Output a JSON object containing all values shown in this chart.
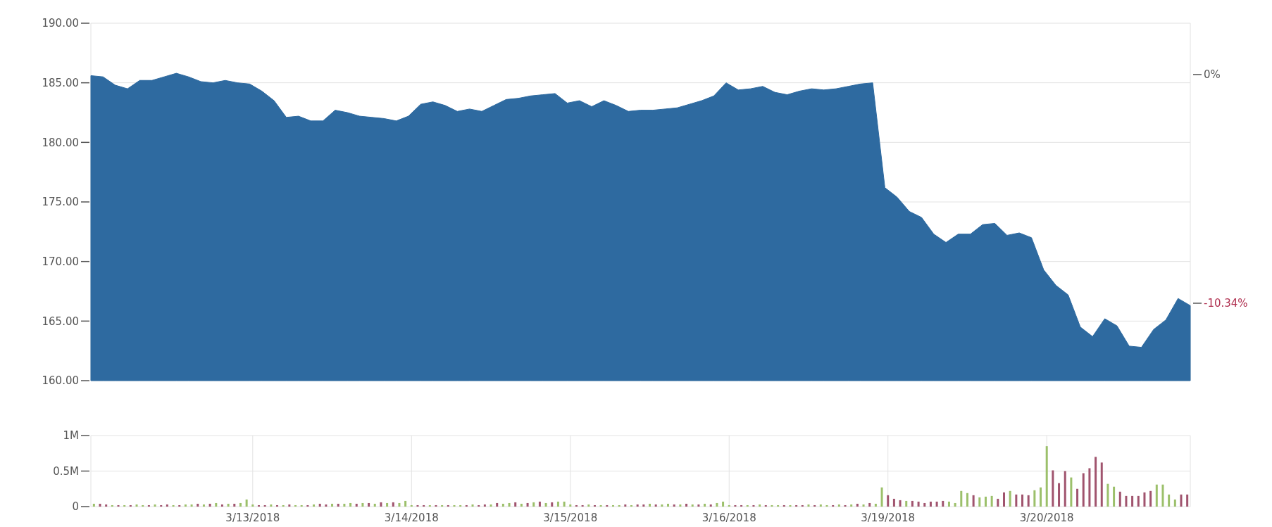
{
  "chart_data": [
    {
      "type": "area",
      "color": "#2e6aa0",
      "categories": [
        null,
        null,
        null,
        null,
        null,
        null,
        null,
        null,
        null,
        null,
        null,
        null,
        null,
        null,
        null,
        null,
        null,
        null,
        null,
        null,
        null,
        null,
        null,
        null,
        null,
        null,
        null,
        null,
        null,
        null,
        null,
        null,
        null,
        null,
        null,
        null,
        null,
        null,
        null,
        null,
        null,
        null,
        null,
        null,
        null,
        null,
        null,
        null,
        null,
        null,
        null,
        null,
        null,
        null,
        null,
        null,
        null,
        null,
        null,
        null,
        null,
        null,
        null,
        null,
        null,
        null,
        null,
        null,
        null,
        null,
        null,
        null,
        null,
        null,
        null,
        null,
        null,
        null,
        null,
        null,
        null,
        null,
        null,
        null,
        null,
        null,
        null,
        null,
        null,
        null,
        null
      ],
      "values": [
        185.6,
        185.5,
        184.8,
        184.5,
        185.2,
        185.2,
        185.5,
        185.8,
        185.5,
        185.1,
        185.0,
        185.2,
        185.0,
        184.9,
        184.3,
        183.5,
        182.1,
        182.2,
        181.8,
        181.8,
        182.7,
        182.5,
        182.2,
        182.1,
        182.0,
        181.8,
        182.2,
        183.2,
        183.4,
        183.1,
        182.6,
        182.8,
        182.6,
        183.1,
        183.6,
        183.7,
        183.9,
        184.0,
        184.1,
        183.3,
        183.5,
        183.0,
        183.5,
        183.1,
        182.6,
        182.7,
        182.7,
        182.8,
        182.9,
        183.2,
        183.5,
        183.9,
        185.0,
        184.4,
        184.5,
        184.7,
        184.2,
        184.0,
        184.3,
        184.5,
        184.4,
        184.5,
        184.7,
        184.9,
        185.0,
        176.2,
        175.4,
        174.2,
        173.7,
        172.3,
        171.6,
        172.3,
        172.3,
        173.1,
        173.2,
        172.2,
        172.4,
        172.0,
        169.3,
        168.0,
        167.2,
        164.5,
        163.7,
        165.2,
        164.6,
        162.9,
        162.8,
        164.3,
        165.1,
        166.9,
        166.3
      ],
      "ylim": [
        160,
        190
      ],
      "yticks": [
        {
          "value": 160,
          "label": "160.00"
        },
        {
          "value": 165,
          "label": "165.00"
        },
        {
          "value": 170,
          "label": "170.00"
        },
        {
          "value": 175,
          "label": "175.00"
        },
        {
          "value": 180,
          "label": "180.00"
        },
        {
          "value": 185,
          "label": "185.00"
        },
        {
          "value": 190,
          "label": "190.00"
        }
      ],
      "y2lim": [
        -13.84,
        2.32
      ],
      "y2ticks": [
        {
          "value": 0,
          "label": "0%"
        },
        {
          "value": -10.34,
          "label": "-10.34%"
        }
      ],
      "grid": "y"
    },
    {
      "type": "bar",
      "categories": [
        null,
        null,
        null,
        null,
        null,
        null,
        null,
        null,
        null,
        null,
        null,
        null,
        null,
        null,
        null,
        null,
        null,
        null,
        null,
        null,
        null,
        null,
        null,
        null,
        null,
        null,
        "3/13/2018",
        null,
        null,
        null,
        null,
        null,
        null,
        null,
        null,
        null,
        null,
        null,
        null,
        null,
        null,
        null,
        null,
        null,
        null,
        null,
        null,
        null,
        null,
        null,
        null,
        null,
        "3/14/2018",
        null,
        null,
        null,
        null,
        null,
        null,
        null,
        null,
        null,
        null,
        null,
        null,
        null,
        null,
        null,
        null,
        null,
        null,
        null,
        null,
        null,
        null,
        null,
        null,
        null,
        "3/15/2018",
        null,
        null,
        null,
        null,
        null,
        null,
        null,
        null,
        null,
        null,
        null,
        null,
        null,
        null,
        null,
        null,
        null,
        null,
        null,
        null,
        null,
        null,
        null,
        null,
        null,
        "3/16/2018",
        null,
        null,
        null,
        null,
        null,
        null,
        null,
        null,
        null,
        null,
        null,
        null,
        null,
        null,
        null,
        null,
        null,
        null,
        null,
        null,
        null,
        null,
        null,
        null,
        null,
        "3/19/2018",
        null,
        null,
        null,
        null,
        null,
        null,
        null,
        null,
        null,
        null,
        null,
        null,
        null,
        null,
        null,
        null,
        null,
        null,
        null,
        null,
        null,
        null,
        null,
        null,
        null,
        "3/20/2018",
        null,
        null,
        null,
        null,
        null,
        null,
        null,
        null,
        null,
        null,
        null,
        null,
        null,
        null,
        null,
        null,
        null,
        null,
        null,
        null,
        null,
        null,
        null
      ],
      "values": [
        0.04,
        0.04,
        0.03,
        0.02,
        0.02,
        0.02,
        0.02,
        0.03,
        0.02,
        0.02,
        0.03,
        0.02,
        0.03,
        0.02,
        0.02,
        0.03,
        0.03,
        0.04,
        0.03,
        0.04,
        0.05,
        0.03,
        0.04,
        0.04,
        0.05,
        0.1,
        0.03,
        0.02,
        0.02,
        0.03,
        0.02,
        0.02,
        0.03,
        0.02,
        0.02,
        0.02,
        0.03,
        0.04,
        0.03,
        0.04,
        0.04,
        0.04,
        0.05,
        0.04,
        0.05,
        0.05,
        0.04,
        0.06,
        0.05,
        0.06,
        0.05,
        0.08,
        0.02,
        0.02,
        0.02,
        0.02,
        0.02,
        0.02,
        0.02,
        0.02,
        0.02,
        0.02,
        0.03,
        0.02,
        0.03,
        0.03,
        0.05,
        0.04,
        0.05,
        0.06,
        0.04,
        0.05,
        0.06,
        0.07,
        0.05,
        0.06,
        0.07,
        0.07,
        0.03,
        0.02,
        0.02,
        0.03,
        0.02,
        0.02,
        0.02,
        0.02,
        0.02,
        0.03,
        0.02,
        0.03,
        0.03,
        0.04,
        0.03,
        0.03,
        0.04,
        0.03,
        0.03,
        0.04,
        0.03,
        0.03,
        0.04,
        0.03,
        0.05,
        0.07,
        0.02,
        0.02,
        0.02,
        0.02,
        0.02,
        0.03,
        0.02,
        0.02,
        0.02,
        0.02,
        0.02,
        0.02,
        0.02,
        0.03,
        0.02,
        0.03,
        0.02,
        0.02,
        0.03,
        0.02,
        0.03,
        0.04,
        0.03,
        0.05,
        0.04,
        0.27,
        0.16,
        0.11,
        0.09,
        0.08,
        0.08,
        0.07,
        0.05,
        0.07,
        0.07,
        0.08,
        0.07,
        0.05,
        0.22,
        0.19,
        0.16,
        0.13,
        0.14,
        0.15,
        0.11,
        0.2,
        0.22,
        0.17,
        0.17,
        0.16,
        0.23,
        0.27,
        0.85,
        0.51,
        0.33,
        0.5,
        0.41,
        0.25,
        0.47,
        0.54,
        0.7,
        0.62,
        0.32,
        0.28,
        0.21,
        0.15,
        0.15,
        0.15,
        0.2,
        0.22,
        0.31,
        0.31,
        0.17,
        0.1,
        0.17,
        0.17
      ],
      "colors": [
        "#9cc06b",
        "#a0546e",
        "#a0546e",
        "#9cc06b",
        "#a0546e",
        "#9cc06b",
        "#a0546e",
        "#9cc06b",
        "#9cc06b",
        "#a0546e",
        "#9cc06b",
        "#a0546e",
        "#a0546e",
        "#9cc06b",
        "#a0546e",
        "#9cc06b",
        "#9cc06b",
        "#a0546e",
        "#9cc06b",
        "#a0546e",
        "#9cc06b",
        "#a0546e",
        "#9cc06b",
        "#a0546e",
        "#9cc06b",
        "#9cc06b",
        "#9cc06b",
        "#a0546e",
        "#a0546e",
        "#9cc06b",
        "#a0546e",
        "#9cc06b",
        "#a0546e",
        "#9cc06b",
        "#9cc06b",
        "#a0546e",
        "#9cc06b",
        "#a0546e",
        "#a0546e",
        "#9cc06b",
        "#a0546e",
        "#9cc06b",
        "#9cc06b",
        "#a0546e",
        "#9cc06b",
        "#a0546e",
        "#9cc06b",
        "#a0546e",
        "#9cc06b",
        "#a0546e",
        "#9cc06b",
        "#9cc06b",
        "#9cc06b",
        "#a0546e",
        "#a0546e",
        "#9cc06b",
        "#a0546e",
        "#9cc06b",
        "#a0546e",
        "#9cc06b",
        "#9cc06b",
        "#a0546e",
        "#9cc06b",
        "#a0546e",
        "#a0546e",
        "#9cc06b",
        "#a0546e",
        "#9cc06b",
        "#9cc06b",
        "#a0546e",
        "#9cc06b",
        "#a0546e",
        "#9cc06b",
        "#a0546e",
        "#9cc06b",
        "#a0546e",
        "#9cc06b",
        "#9cc06b",
        "#9cc06b",
        "#a0546e",
        "#a0546e",
        "#9cc06b",
        "#a0546e",
        "#9cc06b",
        "#a0546e",
        "#9cc06b",
        "#9cc06b",
        "#a0546e",
        "#9cc06b",
        "#a0546e",
        "#a0546e",
        "#9cc06b",
        "#a0546e",
        "#9cc06b",
        "#9cc06b",
        "#a0546e",
        "#9cc06b",
        "#a0546e",
        "#9cc06b",
        "#a0546e",
        "#9cc06b",
        "#a0546e",
        "#9cc06b",
        "#9cc06b",
        "#9cc06b",
        "#a0546e",
        "#a0546e",
        "#9cc06b",
        "#a0546e",
        "#9cc06b",
        "#a0546e",
        "#9cc06b",
        "#9cc06b",
        "#a0546e",
        "#9cc06b",
        "#a0546e",
        "#a0546e",
        "#9cc06b",
        "#a0546e",
        "#9cc06b",
        "#9cc06b",
        "#a0546e",
        "#9cc06b",
        "#a0546e",
        "#9cc06b",
        "#a0546e",
        "#9cc06b",
        "#a0546e",
        "#9cc06b",
        "#9cc06b",
        "#a0546e",
        "#a0546e",
        "#a0546e",
        "#9cc06b",
        "#a0546e",
        "#a0546e",
        "#a0546e",
        "#a0546e",
        "#a0546e",
        "#a0546e",
        "#9cc06b",
        "#9cc06b",
        "#9cc06b",
        "#9cc06b",
        "#a0546e",
        "#9cc06b",
        "#9cc06b",
        "#9cc06b",
        "#a0546e",
        "#a0546e",
        "#9cc06b",
        "#a0546e",
        "#a0546e",
        "#a0546e",
        "#9cc06b",
        "#9cc06b",
        "#9cc06b",
        "#a0546e",
        "#a0546e",
        "#a0546e",
        "#9cc06b",
        "#a0546e",
        "#a0546e",
        "#a0546e",
        "#a0546e",
        "#a0546e",
        "#9cc06b",
        "#9cc06b",
        "#a0546e",
        "#a0546e",
        "#a0546e",
        "#a0546e",
        "#a0546e",
        "#a0546e",
        "#9cc06b",
        "#9cc06b",
        "#9cc06b",
        "#9cc06b",
        "#a0546e",
        "#a0546e"
      ],
      "ylim": [
        0,
        1
      ],
      "yticks": [
        {
          "value": 0,
          "label": "0"
        },
        {
          "value": 0.5,
          "label": "0.5M"
        },
        {
          "value": 1,
          "label": "1M"
        }
      ],
      "grid": true
    }
  ]
}
